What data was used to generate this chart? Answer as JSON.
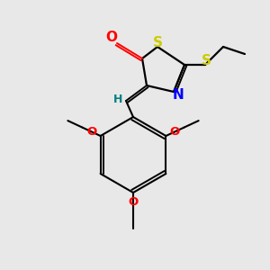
{
  "background_color": "#e8e8e8",
  "S_color": "#cccc00",
  "N_color": "#0000ff",
  "O_color": "#ff0000",
  "H_color": "#008080",
  "bond_color": "#000000",
  "figsize": [
    3.0,
    3.0
  ],
  "dpi": 100,
  "xlim": [
    0,
    300
  ],
  "ylim": [
    0,
    300
  ]
}
